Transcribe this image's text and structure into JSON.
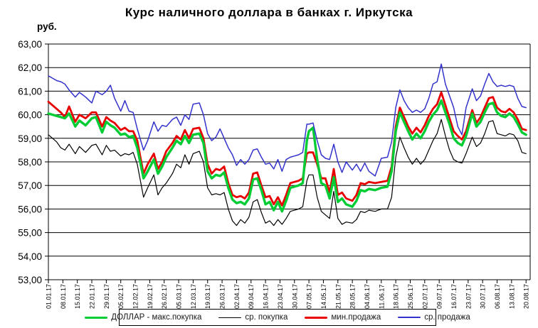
{
  "chart_data": {
    "type": "line",
    "title": "Курс наличного доллара в банках г. Иркутска",
    "ylabel": "руб.",
    "ylim": [
      53,
      63
    ],
    "grid": "horizontal",
    "legend_position": "bottom",
    "yticks": [
      {
        "v": 63,
        "label": "63,00"
      },
      {
        "v": 62,
        "label": "62,00"
      },
      {
        "v": 61,
        "label": "61,00"
      },
      {
        "v": 60,
        "label": "60,00"
      },
      {
        "v": 59,
        "label": "59,00"
      },
      {
        "v": 58,
        "label": "58,00"
      },
      {
        "v": 57,
        "label": "57,00"
      },
      {
        "v": 56,
        "label": "56,00"
      },
      {
        "v": 55,
        "label": "55,00"
      },
      {
        "v": 54,
        "label": "54,00"
      },
      {
        "v": 53,
        "label": "53,00"
      }
    ],
    "xticks": [
      {
        "day": 0,
        "label": "01.01.17"
      },
      {
        "day": 7,
        "label": "08.01.17"
      },
      {
        "day": 14,
        "label": "15.01.17"
      },
      {
        "day": 21,
        "label": "22.01.17"
      },
      {
        "day": 28,
        "label": "29.01.17"
      },
      {
        "day": 35,
        "label": "05.02.17"
      },
      {
        "day": 42,
        "label": "12.02.17"
      },
      {
        "day": 49,
        "label": "19.02.17"
      },
      {
        "day": 56,
        "label": "26.02.17"
      },
      {
        "day": 63,
        "label": "05.03.17"
      },
      {
        "day": 70,
        "label": "12.03.17"
      },
      {
        "day": 77,
        "label": "19.03.17"
      },
      {
        "day": 84,
        "label": "26.03.17"
      },
      {
        "day": 91,
        "label": "02.04.17"
      },
      {
        "day": 98,
        "label": "09.04.17"
      },
      {
        "day": 105,
        "label": "16.04.17"
      },
      {
        "day": 112,
        "label": "23.04.17"
      },
      {
        "day": 119,
        "label": "30.04.17"
      },
      {
        "day": 126,
        "label": "07.05.17"
      },
      {
        "day": 133,
        "label": "14.05.17"
      },
      {
        "day": 140,
        "label": "21.05.17"
      },
      {
        "day": 147,
        "label": "28.05.17"
      },
      {
        "day": 154,
        "label": "04.06.17"
      },
      {
        "day": 161,
        "label": "11.06.17"
      },
      {
        "day": 168,
        "label": "18.06.17"
      },
      {
        "day": 175,
        "label": "25.06.17"
      },
      {
        "day": 182,
        "label": "02.07.17"
      },
      {
        "day": 189,
        "label": "09.07.17"
      },
      {
        "day": 196,
        "label": "16.07.17"
      },
      {
        "day": 203,
        "label": "23.07.17"
      },
      {
        "day": 210,
        "label": "30.07.17"
      },
      {
        "day": 217,
        "label": "06.08.17"
      },
      {
        "day": 224,
        "label": "13.08.17"
      },
      {
        "day": 231,
        "label": "20.08.17"
      }
    ],
    "days": [
      0,
      2,
      4,
      6,
      8,
      10,
      13,
      15,
      18,
      21,
      23,
      26,
      28,
      30,
      32,
      35,
      37,
      39,
      41,
      43,
      46,
      48,
      51,
      53,
      55,
      57,
      60,
      62,
      64,
      66,
      68,
      70,
      73,
      75,
      77,
      79,
      81,
      83,
      85,
      87,
      89,
      91,
      93,
      95,
      97,
      99,
      101,
      103,
      105,
      107,
      109,
      111,
      113,
      115,
      117,
      119,
      121,
      123,
      125,
      126,
      128,
      130,
      132,
      134,
      136,
      138,
      140,
      142,
      144,
      147,
      149,
      151,
      153,
      155,
      158,
      161,
      164,
      166,
      168,
      170,
      172,
      174,
      176,
      178,
      180,
      182,
      184,
      186,
      188,
      190,
      192,
      194,
      196,
      198,
      200,
      202,
      205,
      207,
      209,
      211,
      213,
      215,
      217,
      219,
      221,
      223,
      225,
      227,
      229,
      231
    ],
    "series": [
      {
        "name": "ДОЛЛАР - макс.покупка",
        "color": "#00cc33",
        "width": 3.4,
        "values": [
          60.05,
          60.0,
          59.95,
          59.9,
          59.85,
          60.05,
          59.5,
          59.75,
          59.55,
          59.85,
          59.9,
          59.25,
          59.7,
          59.55,
          59.45,
          59.15,
          59.2,
          59.05,
          59.1,
          58.6,
          57.3,
          57.6,
          58.1,
          57.5,
          57.8,
          58.2,
          58.6,
          58.9,
          58.75,
          59.1,
          58.8,
          59.15,
          59.2,
          58.8,
          57.6,
          57.3,
          57.45,
          57.4,
          57.55,
          56.9,
          56.4,
          56.25,
          56.3,
          56.2,
          56.45,
          57.25,
          57.3,
          56.8,
          56.2,
          56.3,
          55.95,
          56.3,
          55.9,
          56.35,
          56.9,
          56.95,
          57.0,
          57.1,
          58.9,
          59.3,
          59.45,
          58.1,
          57.1,
          57.0,
          56.45,
          57.35,
          56.3,
          56.45,
          56.2,
          56.1,
          56.35,
          56.8,
          56.75,
          56.85,
          56.8,
          56.9,
          56.95,
          57.6,
          59.3,
          60.1,
          59.7,
          59.3,
          58.95,
          59.2,
          59.0,
          59.3,
          59.7,
          60.0,
          60.2,
          60.6,
          60.1,
          59.6,
          59.0,
          58.8,
          58.7,
          59.1,
          60.05,
          59.5,
          59.7,
          60.1,
          60.45,
          60.5,
          60.1,
          59.95,
          59.9,
          60.05,
          59.9,
          59.6,
          59.25,
          59.15
        ]
      },
      {
        "name": "ср. покупка",
        "color": "#000000",
        "width": 1.2,
        "values": [
          59.15,
          59.0,
          58.85,
          58.6,
          58.5,
          58.75,
          58.35,
          58.65,
          58.4,
          58.7,
          58.75,
          58.3,
          58.7,
          58.45,
          58.5,
          58.25,
          58.35,
          58.3,
          58.4,
          57.9,
          56.5,
          56.9,
          57.45,
          56.6,
          56.9,
          57.1,
          57.5,
          57.9,
          57.75,
          58.3,
          57.9,
          58.35,
          58.45,
          58.0,
          56.9,
          56.6,
          56.65,
          56.6,
          56.7,
          56.0,
          55.5,
          55.3,
          55.55,
          55.4,
          55.65,
          56.3,
          56.4,
          55.85,
          55.4,
          55.5,
          55.3,
          55.55,
          55.35,
          55.6,
          55.9,
          55.95,
          56.0,
          56.1,
          57.2,
          57.45,
          57.45,
          56.5,
          55.9,
          55.75,
          55.6,
          56.75,
          55.6,
          55.35,
          55.45,
          55.4,
          55.55,
          55.9,
          55.85,
          55.95,
          55.9,
          56.0,
          56.0,
          56.5,
          58.2,
          59.05,
          58.6,
          58.2,
          57.9,
          58.15,
          57.9,
          58.1,
          58.5,
          58.9,
          59.2,
          59.8,
          59.1,
          58.5,
          58.1,
          58.0,
          57.95,
          58.35,
          59.05,
          58.65,
          58.8,
          59.2,
          59.7,
          59.75,
          59.2,
          59.15,
          59.1,
          59.2,
          59.15,
          58.9,
          58.4,
          58.35
        ]
      },
      {
        "name": "мин.продажа",
        "color": "#e80000",
        "width": 2.8,
        "values": [
          60.55,
          60.4,
          60.25,
          60.1,
          59.9,
          60.35,
          59.7,
          60.0,
          59.85,
          60.1,
          60.1,
          59.5,
          59.9,
          59.75,
          59.65,
          59.35,
          59.45,
          59.3,
          59.3,
          58.9,
          57.5,
          57.9,
          58.35,
          57.7,
          58.0,
          58.45,
          58.8,
          59.1,
          58.95,
          59.35,
          59.0,
          59.4,
          59.45,
          59.0,
          57.9,
          57.5,
          57.7,
          57.65,
          57.8,
          57.1,
          56.6,
          56.5,
          56.55,
          56.45,
          56.7,
          57.5,
          57.55,
          57.0,
          56.5,
          56.55,
          56.2,
          56.5,
          56.15,
          56.6,
          57.1,
          57.15,
          57.2,
          57.3,
          58.35,
          58.4,
          58.4,
          57.9,
          57.3,
          57.3,
          56.7,
          57.7,
          56.6,
          56.7,
          56.45,
          56.35,
          56.6,
          57.1,
          57.05,
          57.15,
          57.1,
          57.15,
          57.2,
          57.8,
          59.5,
          60.3,
          59.9,
          59.5,
          59.2,
          59.45,
          59.25,
          59.55,
          59.95,
          60.25,
          60.45,
          60.95,
          60.4,
          59.85,
          59.3,
          59.1,
          58.95,
          59.3,
          60.2,
          59.65,
          59.9,
          60.3,
          60.7,
          60.75,
          60.3,
          60.15,
          60.1,
          60.25,
          60.1,
          59.8,
          59.4,
          59.35
        ]
      },
      {
        "name": "ср. продажа",
        "color": "#3333cc",
        "width": 1.5,
        "values": [
          61.65,
          61.55,
          61.45,
          61.4,
          61.3,
          61.05,
          60.75,
          60.95,
          60.75,
          60.5,
          61.0,
          60.85,
          61.0,
          61.25,
          60.7,
          60.15,
          60.6,
          60.15,
          60.1,
          59.4,
          58.5,
          58.9,
          59.7,
          59.3,
          59.55,
          59.5,
          59.8,
          59.9,
          59.55,
          60.0,
          59.8,
          60.45,
          60.5,
          60.0,
          59.2,
          58.9,
          59.05,
          59.4,
          59.0,
          58.6,
          58.3,
          57.85,
          58.1,
          57.9,
          58.1,
          58.5,
          58.55,
          58.2,
          57.9,
          57.95,
          57.7,
          58.1,
          57.6,
          58.1,
          58.2,
          58.25,
          58.3,
          58.4,
          59.6,
          59.6,
          59.65,
          58.9,
          58.3,
          58.15,
          58.1,
          58.75,
          58.0,
          57.55,
          58.0,
          57.65,
          57.9,
          57.6,
          57.95,
          57.6,
          57.4,
          58.15,
          58.2,
          58.85,
          60.3,
          61.05,
          60.6,
          60.3,
          60.1,
          60.2,
          60.1,
          60.25,
          60.7,
          61.3,
          61.4,
          62.15,
          61.3,
          60.8,
          60.3,
          59.5,
          59.15,
          60.3,
          61.1,
          60.6,
          60.8,
          61.3,
          61.75,
          61.4,
          61.2,
          61.25,
          61.2,
          61.25,
          61.2,
          60.7,
          60.35,
          60.3
        ]
      }
    ]
  }
}
